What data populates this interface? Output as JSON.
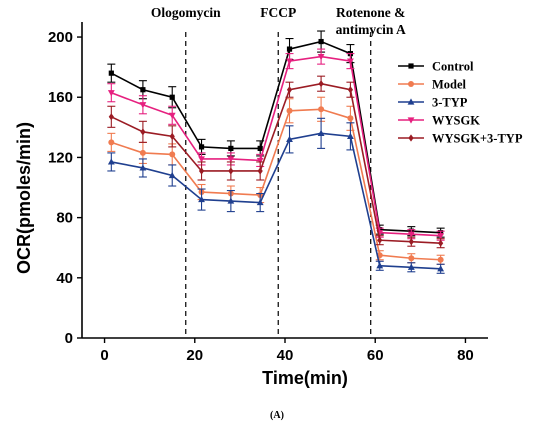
{
  "chart_data": {
    "type": "line",
    "xlabel": "Time(min)",
    "ylabel": "OCR(pmoles/min)",
    "xlim": [
      -5,
      85
    ],
    "ylim": [
      0,
      210
    ],
    "xticks": [
      0,
      20,
      40,
      60,
      80
    ],
    "yticks": [
      0,
      40,
      80,
      120,
      160,
      200
    ],
    "panel_label": "(A)",
    "annotations": [
      {
        "lines": [
          "Ologomycin"
        ],
        "x": 18
      },
      {
        "lines": [
          "FCCP"
        ],
        "x": 38.5
      },
      {
        "lines": [
          "Rotenone &",
          "antimycin A"
        ],
        "x": 59
      }
    ],
    "legend_position": "top-right",
    "x": [
      1.5,
      8.5,
      15,
      21.5,
      28,
      34.5,
      41,
      48,
      54.5,
      61,
      68,
      74.5
    ],
    "series": [
      {
        "name": "Control",
        "color": "#000000",
        "marker": "square",
        "values": [
          176,
          165,
          160,
          127,
          126,
          126,
          192,
          197,
          189,
          72,
          71,
          70
        ],
        "errors": [
          6,
          6,
          7,
          5,
          5,
          5,
          7,
          7,
          6,
          3,
          3,
          3
        ]
      },
      {
        "name": "Model",
        "color": "#f07b50",
        "marker": "circle",
        "values": [
          130,
          123,
          122,
          97,
          96,
          95,
          151,
          152,
          146,
          55,
          53,
          52
        ],
        "errors": [
          6,
          7,
          7,
          5,
          5,
          5,
          8,
          8,
          8,
          3,
          3,
          3
        ]
      },
      {
        "name": "3-TYP",
        "color": "#1f3f8f",
        "marker": "triangle-up",
        "values": [
          117,
          113,
          108,
          92,
          91,
          90,
          132,
          136,
          134,
          48,
          47,
          46
        ],
        "errors": [
          6,
          6,
          7,
          7,
          7,
          6,
          9,
          10,
          9,
          3,
          3,
          3
        ]
      },
      {
        "name": "WYSGK",
        "color": "#e6207f",
        "marker": "triangle-down",
        "values": [
          163,
          155,
          148,
          119,
          119,
          118,
          184,
          187,
          184,
          70,
          69,
          68
        ],
        "errors": [
          6,
          6,
          6,
          4,
          4,
          4,
          5,
          5,
          5,
          3,
          3,
          3
        ]
      },
      {
        "name": "WYSGK+3-TYP",
        "color": "#9b1c24",
        "marker": "diamond",
        "values": [
          147,
          137,
          134,
          111,
          111,
          111,
          165,
          169,
          165,
          65,
          64,
          63
        ],
        "errors": [
          7,
          7,
          7,
          6,
          6,
          6,
          5,
          5,
          5,
          3,
          3,
          3
        ]
      }
    ]
  }
}
